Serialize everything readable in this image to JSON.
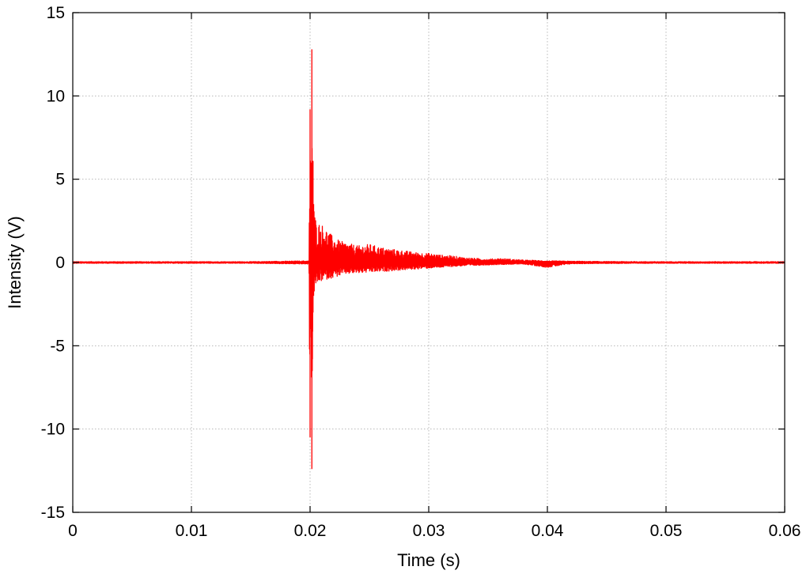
{
  "chart_data": {
    "type": "line",
    "title": "",
    "xlabel": "Time (s)",
    "ylabel": "Intensity (V)",
    "xlim": [
      0,
      0.06
    ],
    "ylim": [
      -15,
      15
    ],
    "xticks": [
      0,
      0.01,
      0.02,
      0.03,
      0.04,
      0.05,
      0.06
    ],
    "xtick_labels": [
      "0",
      "0.01",
      "0.02",
      "0.03",
      "0.04",
      "0.05",
      "0.06"
    ],
    "yticks": [
      -15,
      -10,
      -5,
      0,
      5,
      10,
      15
    ],
    "ytick_labels": [
      "-15",
      "-10",
      "-5",
      "0",
      "5",
      "10",
      "15"
    ],
    "grid": true,
    "line_color": "#ff0000",
    "series": [
      {
        "x": [
          0,
          0.005,
          0.01,
          0.015,
          0.0199,
          0.02,
          0.02005,
          0.0201,
          0.02015,
          0.0202,
          0.02025,
          0.0203,
          0.0204,
          0.0205,
          0.0206,
          0.0208,
          0.021,
          0.0215,
          0.022,
          0.0225,
          0.023,
          0.024,
          0.025,
          0.026,
          0.027,
          0.028,
          0.029,
          0.03,
          0.031,
          0.032,
          0.033,
          0.034,
          0.035,
          0.036,
          0.038,
          0.04,
          0.042,
          0.045,
          0.05,
          0.055,
          0.06
        ],
        "upper": [
          0.05,
          0.05,
          0.05,
          0.05,
          0.1,
          9.2,
          5.0,
          6.0,
          12.8,
          4.5,
          6.1,
          3.5,
          3.0,
          2.5,
          2.3,
          2.4,
          2.3,
          1.9,
          1.5,
          1.3,
          1.2,
          1.0,
          1.1,
          0.9,
          0.8,
          0.7,
          0.6,
          0.55,
          0.45,
          0.4,
          0.3,
          0.25,
          0.2,
          0.25,
          0.15,
          0.1,
          0.08,
          0.06,
          0.05,
          0.05,
          0.05
        ],
        "lower": [
          -0.05,
          -0.05,
          -0.05,
          -0.05,
          -0.1,
          -10.5,
          -4.0,
          -4.5,
          -12.4,
          -5.8,
          -3.0,
          -2.0,
          -1.6,
          -1.4,
          -1.3,
          -1.2,
          -1.1,
          -1.0,
          -0.9,
          -0.8,
          -0.7,
          -0.65,
          -0.6,
          -0.55,
          -0.5,
          -0.45,
          -0.4,
          -0.35,
          -0.3,
          -0.25,
          -0.2,
          -0.18,
          -0.15,
          -0.12,
          -0.1,
          -0.3,
          -0.08,
          -0.06,
          -0.05,
          -0.05,
          -0.05
        ]
      }
    ]
  }
}
